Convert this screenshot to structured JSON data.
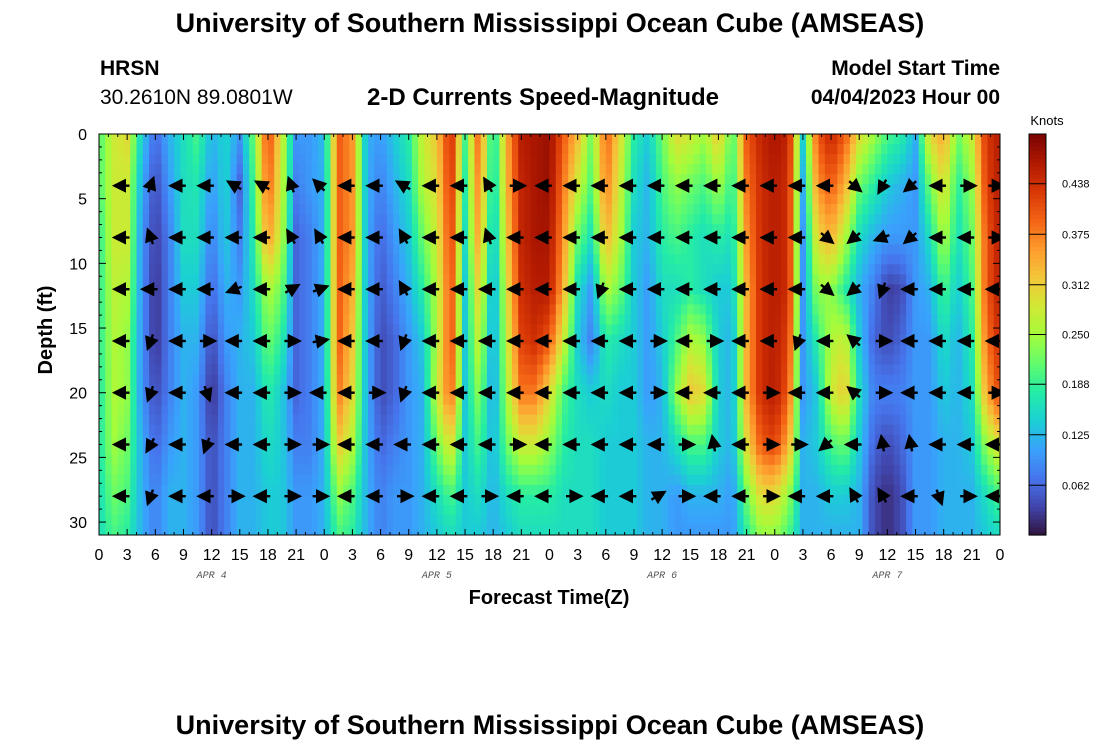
{
  "header": {
    "title": "University of Southern Mississippi Ocean Cube (AMSEAS)",
    "station": "HRSN",
    "coords": "30.2610N  89.0801W",
    "subtitle": "2-D Currents Speed-Magnitude",
    "model_start_label": "Model Start Time",
    "model_start_value": "04/04/2023 Hour 00",
    "footer_title": "University of Southern Mississippi Ocean Cube (AMSEAS)"
  },
  "chart_data": {
    "type": "heatmap",
    "title": "2-D Currents Speed-Magnitude",
    "xlabel": "Forecast Time(Z)",
    "ylabel": "Depth (ft)",
    "xlim": [
      0,
      96
    ],
    "ylim": [
      31,
      0
    ],
    "x_ticks": [
      {
        "hour": 0,
        "label": "0"
      },
      {
        "hour": 3,
        "label": "3"
      },
      {
        "hour": 6,
        "label": "6"
      },
      {
        "hour": 9,
        "label": "9"
      },
      {
        "hour": 12,
        "label": "12"
      },
      {
        "hour": 15,
        "label": "15"
      },
      {
        "hour": 18,
        "label": "18"
      },
      {
        "hour": 21,
        "label": "21"
      },
      {
        "hour": 24,
        "label": "0"
      },
      {
        "hour": 27,
        "label": "3"
      },
      {
        "hour": 30,
        "label": "6"
      },
      {
        "hour": 33,
        "label": "9"
      },
      {
        "hour": 36,
        "label": "12"
      },
      {
        "hour": 39,
        "label": "15"
      },
      {
        "hour": 42,
        "label": "18"
      },
      {
        "hour": 45,
        "label": "21"
      },
      {
        "hour": 48,
        "label": "0"
      },
      {
        "hour": 51,
        "label": "3"
      },
      {
        "hour": 54,
        "label": "6"
      },
      {
        "hour": 57,
        "label": "9"
      },
      {
        "hour": 60,
        "label": "12"
      },
      {
        "hour": 63,
        "label": "15"
      },
      {
        "hour": 66,
        "label": "18"
      },
      {
        "hour": 69,
        "label": "21"
      },
      {
        "hour": 72,
        "label": "0"
      },
      {
        "hour": 75,
        "label": "3"
      },
      {
        "hour": 78,
        "label": "6"
      },
      {
        "hour": 81,
        "label": "9"
      },
      {
        "hour": 84,
        "label": "12"
      },
      {
        "hour": 87,
        "label": "15"
      },
      {
        "hour": 90,
        "label": "18"
      },
      {
        "hour": 93,
        "label": "21"
      },
      {
        "hour": 96,
        "label": "0"
      }
    ],
    "y_ticks": [
      0,
      5,
      10,
      15,
      20,
      25,
      30
    ],
    "day_labels": [
      {
        "hour": 12,
        "label": "APR 4"
      },
      {
        "hour": 36,
        "label": "APR 5"
      },
      {
        "hour": 60,
        "label": "APR 6"
      },
      {
        "hour": 84,
        "label": "APR 7"
      }
    ],
    "colorbar": {
      "unit": "Knots",
      "min": 0,
      "max": 0.5,
      "ticks": [
        0.062,
        0.125,
        0.188,
        0.25,
        0.312,
        0.375,
        0.438
      ],
      "tick_labels": [
        "0.062",
        "0.125",
        "0.188",
        "0.250",
        "0.312",
        "0.375",
        "0.438"
      ],
      "colors": [
        "#30123b",
        "#4145ab",
        "#4675ed",
        "#39a2fc",
        "#1bcfd4",
        "#24eca6",
        "#61fc6c",
        "#a4fc3b",
        "#d1e834",
        "#f3c63a",
        "#fe9b2d",
        "#f36315",
        "#d93806",
        "#b11901",
        "#7a0402"
      ]
    },
    "column_hours": [
      0,
      1.5,
      3,
      4.5,
      6,
      7.5,
      9,
      10.5,
      12,
      13.5,
      15,
      16.5,
      18,
      19.5,
      21,
      22.5,
      24,
      25.5,
      27,
      28.5,
      30,
      31.5,
      33,
      34.5,
      36,
      37.5,
      39,
      40.5,
      42,
      43.5,
      45,
      46.5,
      48,
      49.5,
      51,
      52.5,
      54,
      55.5,
      57,
      58.5,
      60,
      61.5,
      63,
      64.5,
      66,
      67.5,
      69,
      70.5,
      72,
      73.5,
      75,
      76.5,
      78,
      79.5,
      81,
      82.5,
      84,
      85.5,
      87,
      88.5,
      90,
      91.5,
      93,
      94.5,
      96
    ],
    "depths": [
      0,
      4,
      8,
      12,
      16,
      20,
      24,
      28,
      31
    ],
    "speed_knots": [
      [
        0.2,
        0.28,
        0.3,
        0.15,
        0.06,
        0.12,
        0.16,
        0.2,
        0.12,
        0.15,
        0.1,
        0.22,
        0.42,
        0.28,
        0.1,
        0.1,
        0.13,
        0.4,
        0.36,
        0.12,
        0.1,
        0.14,
        0.18,
        0.28,
        0.32,
        0.45,
        0.2,
        0.4,
        0.15,
        0.35,
        0.46,
        0.47,
        0.48,
        0.4,
        0.33,
        0.22,
        0.4,
        0.3,
        0.18,
        0.14,
        0.22,
        0.3,
        0.28,
        0.25,
        0.32,
        0.2,
        0.4,
        0.45,
        0.47,
        0.45,
        0.15,
        0.4,
        0.45,
        0.4,
        0.3,
        0.25,
        0.2,
        0.18,
        0.12,
        0.3,
        0.35,
        0.22,
        0.28,
        0.43,
        0.46
      ],
      [
        0.2,
        0.28,
        0.28,
        0.12,
        0.04,
        0.1,
        0.16,
        0.17,
        0.1,
        0.15,
        0.06,
        0.2,
        0.4,
        0.27,
        0.08,
        0.1,
        0.12,
        0.4,
        0.36,
        0.12,
        0.08,
        0.12,
        0.16,
        0.26,
        0.3,
        0.44,
        0.18,
        0.38,
        0.14,
        0.34,
        0.45,
        0.47,
        0.48,
        0.38,
        0.28,
        0.2,
        0.38,
        0.28,
        0.16,
        0.12,
        0.2,
        0.24,
        0.22,
        0.2,
        0.25,
        0.18,
        0.38,
        0.44,
        0.46,
        0.44,
        0.12,
        0.36,
        0.4,
        0.34,
        0.22,
        0.18,
        0.14,
        0.12,
        0.1,
        0.22,
        0.3,
        0.18,
        0.24,
        0.42,
        0.46
      ],
      [
        0.18,
        0.28,
        0.28,
        0.1,
        0.03,
        0.08,
        0.16,
        0.16,
        0.08,
        0.14,
        0.08,
        0.18,
        0.36,
        0.26,
        0.06,
        0.08,
        0.12,
        0.4,
        0.36,
        0.12,
        0.06,
        0.1,
        0.14,
        0.22,
        0.28,
        0.43,
        0.16,
        0.36,
        0.12,
        0.32,
        0.45,
        0.47,
        0.47,
        0.36,
        0.22,
        0.16,
        0.34,
        0.26,
        0.14,
        0.12,
        0.18,
        0.2,
        0.18,
        0.16,
        0.18,
        0.16,
        0.36,
        0.44,
        0.46,
        0.44,
        0.1,
        0.3,
        0.34,
        0.26,
        0.16,
        0.12,
        0.1,
        0.1,
        0.1,
        0.16,
        0.26,
        0.16,
        0.22,
        0.4,
        0.46
      ],
      [
        0.18,
        0.27,
        0.26,
        0.1,
        0.02,
        0.08,
        0.14,
        0.14,
        0.06,
        0.12,
        0.1,
        0.16,
        0.26,
        0.22,
        0.06,
        0.08,
        0.12,
        0.4,
        0.34,
        0.12,
        0.05,
        0.08,
        0.12,
        0.18,
        0.26,
        0.42,
        0.14,
        0.32,
        0.1,
        0.3,
        0.44,
        0.46,
        0.46,
        0.34,
        0.16,
        0.1,
        0.26,
        0.22,
        0.14,
        0.1,
        0.16,
        0.16,
        0.18,
        0.16,
        0.14,
        0.14,
        0.34,
        0.44,
        0.46,
        0.44,
        0.1,
        0.24,
        0.24,
        0.18,
        0.12,
        0.08,
        0.03,
        0.04,
        0.1,
        0.12,
        0.2,
        0.14,
        0.2,
        0.4,
        0.46
      ],
      [
        0.18,
        0.26,
        0.24,
        0.1,
        0.02,
        0.08,
        0.12,
        0.12,
        0.04,
        0.1,
        0.12,
        0.14,
        0.22,
        0.18,
        0.06,
        0.08,
        0.12,
        0.4,
        0.32,
        0.12,
        0.04,
        0.06,
        0.1,
        0.14,
        0.26,
        0.42,
        0.14,
        0.28,
        0.1,
        0.28,
        0.42,
        0.44,
        0.4,
        0.28,
        0.14,
        0.08,
        0.18,
        0.16,
        0.14,
        0.1,
        0.14,
        0.2,
        0.26,
        0.24,
        0.14,
        0.12,
        0.34,
        0.44,
        0.46,
        0.42,
        0.1,
        0.18,
        0.26,
        0.28,
        0.14,
        0.06,
        0.04,
        0.06,
        0.1,
        0.1,
        0.16,
        0.12,
        0.18,
        0.38,
        0.44
      ],
      [
        0.17,
        0.26,
        0.24,
        0.1,
        0.04,
        0.08,
        0.12,
        0.1,
        0.02,
        0.08,
        0.12,
        0.12,
        0.18,
        0.14,
        0.06,
        0.08,
        0.12,
        0.38,
        0.3,
        0.12,
        0.04,
        0.06,
        0.1,
        0.12,
        0.28,
        0.4,
        0.14,
        0.24,
        0.1,
        0.26,
        0.38,
        0.38,
        0.3,
        0.2,
        0.16,
        0.14,
        0.16,
        0.14,
        0.14,
        0.1,
        0.12,
        0.24,
        0.32,
        0.3,
        0.14,
        0.12,
        0.34,
        0.44,
        0.46,
        0.4,
        0.1,
        0.14,
        0.28,
        0.32,
        0.16,
        0.08,
        0.08,
        0.08,
        0.1,
        0.1,
        0.14,
        0.12,
        0.16,
        0.34,
        0.42
      ],
      [
        0.17,
        0.25,
        0.22,
        0.12,
        0.06,
        0.1,
        0.12,
        0.1,
        0.04,
        0.08,
        0.12,
        0.12,
        0.16,
        0.14,
        0.08,
        0.08,
        0.12,
        0.32,
        0.26,
        0.12,
        0.06,
        0.08,
        0.1,
        0.12,
        0.22,
        0.3,
        0.14,
        0.2,
        0.12,
        0.22,
        0.28,
        0.28,
        0.24,
        0.18,
        0.16,
        0.16,
        0.14,
        0.14,
        0.14,
        0.12,
        0.12,
        0.16,
        0.2,
        0.2,
        0.14,
        0.12,
        0.3,
        0.4,
        0.42,
        0.34,
        0.12,
        0.14,
        0.2,
        0.22,
        0.14,
        0.06,
        0.04,
        0.06,
        0.1,
        0.1,
        0.12,
        0.12,
        0.14,
        0.24,
        0.3
      ],
      [
        0.16,
        0.22,
        0.2,
        0.12,
        0.08,
        0.12,
        0.12,
        0.1,
        0.04,
        0.08,
        0.12,
        0.12,
        0.14,
        0.14,
        0.1,
        0.1,
        0.12,
        0.24,
        0.2,
        0.12,
        0.08,
        0.1,
        0.1,
        0.12,
        0.16,
        0.2,
        0.14,
        0.16,
        0.12,
        0.16,
        0.18,
        0.18,
        0.18,
        0.16,
        0.16,
        0.16,
        0.14,
        0.14,
        0.14,
        0.12,
        0.12,
        0.1,
        0.12,
        0.12,
        0.12,
        0.1,
        0.22,
        0.3,
        0.3,
        0.24,
        0.12,
        0.12,
        0.14,
        0.14,
        0.12,
        0.04,
        0.02,
        0.04,
        0.1,
        0.1,
        0.12,
        0.12,
        0.12,
        0.16,
        0.2
      ],
      [
        0.16,
        0.2,
        0.18,
        0.12,
        0.08,
        0.12,
        0.12,
        0.1,
        0.04,
        0.08,
        0.12,
        0.12,
        0.14,
        0.14,
        0.1,
        0.1,
        0.12,
        0.2,
        0.18,
        0.12,
        0.08,
        0.1,
        0.1,
        0.12,
        0.14,
        0.16,
        0.14,
        0.14,
        0.12,
        0.14,
        0.16,
        0.16,
        0.16,
        0.16,
        0.16,
        0.16,
        0.14,
        0.14,
        0.14,
        0.12,
        0.12,
        0.1,
        0.1,
        0.1,
        0.1,
        0.1,
        0.18,
        0.24,
        0.24,
        0.2,
        0.12,
        0.12,
        0.12,
        0.12,
        0.12,
        0.04,
        0.02,
        0.04,
        0.1,
        0.1,
        0.12,
        0.12,
        0.12,
        0.14,
        0.16
      ]
    ],
    "vector_hours": [
      2.5,
      5.5,
      8.5,
      11.5,
      14.5,
      17.5,
      20.5,
      23.5,
      26.5,
      29.5,
      32.5,
      35.5,
      38.5,
      41.5,
      44.5,
      47.5,
      50.5,
      53.5,
      56.5,
      59.5,
      62.5,
      65.5,
      68.5,
      71.5,
      74.5,
      77.5,
      80.5,
      83.5,
      86.5,
      89.5,
      92.5,
      95.5
    ],
    "vector_depths": [
      4,
      8,
      12,
      16,
      20,
      24,
      28
    ],
    "vector_directions_deg": [
      [
        270,
        20,
        270,
        270,
        300,
        300,
        340,
        315,
        270,
        270,
        300,
        270,
        270,
        330,
        90,
        270,
        270,
        270,
        270,
        270,
        270,
        270,
        270,
        270,
        270,
        270,
        130,
        210,
        230,
        270,
        90,
        90
      ],
      [
        270,
        340,
        270,
        270,
        270,
        270,
        330,
        330,
        270,
        270,
        330,
        270,
        270,
        340,
        270,
        270,
        270,
        270,
        270,
        270,
        270,
        270,
        270,
        270,
        270,
        130,
        230,
        250,
        230,
        270,
        270,
        90
      ],
      [
        270,
        270,
        270,
        270,
        250,
        270,
        60,
        70,
        270,
        270,
        330,
        270,
        270,
        270,
        270,
        270,
        270,
        200,
        270,
        270,
        270,
        270,
        270,
        270,
        270,
        130,
        230,
        200,
        270,
        270,
        270,
        270
      ],
      [
        270,
        200,
        270,
        90,
        270,
        270,
        90,
        80,
        270,
        270,
        200,
        270,
        270,
        270,
        270,
        270,
        270,
        270,
        270,
        90,
        270,
        90,
        270,
        270,
        200,
        270,
        310,
        90,
        270,
        270,
        270,
        270
      ],
      [
        270,
        200,
        270,
        160,
        270,
        270,
        90,
        270,
        270,
        90,
        200,
        270,
        270,
        270,
        270,
        270,
        270,
        270,
        270,
        90,
        270,
        270,
        270,
        90,
        270,
        270,
        310,
        90,
        270,
        270,
        270,
        90
      ],
      [
        270,
        210,
        270,
        200,
        270,
        270,
        90,
        90,
        270,
        270,
        270,
        270,
        270,
        270,
        90,
        270,
        270,
        270,
        270,
        270,
        90,
        350,
        270,
        90,
        90,
        230,
        270,
        350,
        350,
        270,
        270,
        270
      ],
      [
        270,
        200,
        270,
        270,
        90,
        270,
        90,
        90,
        270,
        270,
        90,
        270,
        270,
        90,
        270,
        270,
        90,
        270,
        270,
        60,
        90,
        270,
        270,
        90,
        270,
        270,
        330,
        330,
        270,
        160,
        90,
        270
      ]
    ]
  }
}
